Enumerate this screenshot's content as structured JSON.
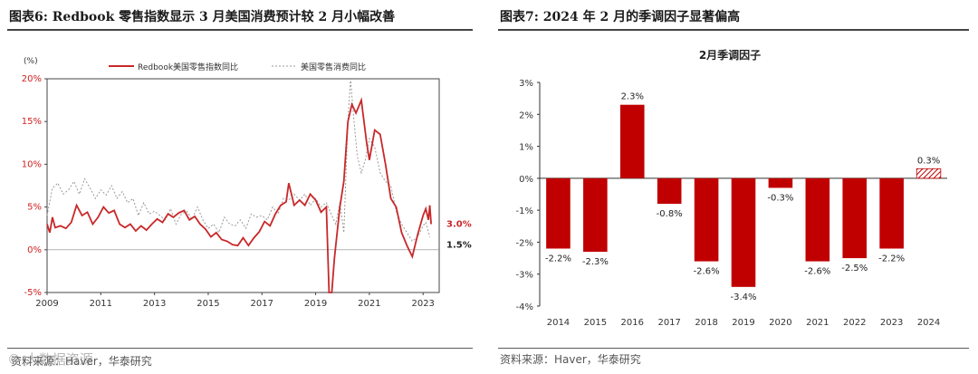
{
  "left": {
    "title": "图表6:   Redbook 零售指数显示 3 月美国消费预计较 2 月小幅改善",
    "source": "资料来源：Haver，华泰研究",
    "watermark": "© 大数据资源",
    "colors": {
      "redbook": "#c8282a",
      "retail": "#999999"
    }
  },
  "right": {
    "title": "图表7:   2024 年 2 月的季调因子显著偏高",
    "source": "资料来源：Haver，华泰研究",
    "colors": {
      "bar": "#c00000",
      "hatch": "#c00000"
    }
  },
  "chart_data": [
    {
      "type": "line",
      "unit_label": "(%)",
      "x_ticks": [
        "2009",
        "2011",
        "2013",
        "2015",
        "2017",
        "2019",
        "2021",
        "2023"
      ],
      "ylim": [
        -5,
        20
      ],
      "y_ticks": [
        "20%",
        "15%",
        "10%",
        "5%",
        "0%",
        "-5%"
      ],
      "y_tick_values": [
        20,
        15,
        10,
        5,
        0,
        -5
      ],
      "xlim": [
        2009,
        2023.6
      ],
      "series": [
        {
          "name": "Redbook美国零售指数同比",
          "end_label": "3.0%",
          "x": [
            2009.0,
            2009.1,
            2009.2,
            2009.3,
            2009.5,
            2009.7,
            2009.9,
            2010.1,
            2010.3,
            2010.5,
            2010.7,
            2010.9,
            2011.1,
            2011.3,
            2011.5,
            2011.7,
            2011.9,
            2012.1,
            2012.3,
            2012.5,
            2012.7,
            2012.9,
            2013.1,
            2013.3,
            2013.5,
            2013.7,
            2013.9,
            2014.1,
            2014.3,
            2014.5,
            2014.7,
            2014.9,
            2015.1,
            2015.3,
            2015.5,
            2015.7,
            2015.9,
            2016.1,
            2016.3,
            2016.5,
            2016.7,
            2016.9,
            2017.1,
            2017.3,
            2017.5,
            2017.7,
            2017.9,
            2018.0,
            2018.2,
            2018.4,
            2018.6,
            2018.8,
            2019.0,
            2019.2,
            2019.4,
            2019.5,
            2019.6,
            2019.7,
            2019.9,
            2020.05,
            2020.2,
            2020.35,
            2020.5,
            2020.7,
            2020.9,
            2021.0,
            2021.2,
            2021.4,
            2021.6,
            2021.8,
            2022.0,
            2022.2,
            2022.4,
            2022.6,
            2022.8,
            2023.0,
            2023.1,
            2023.2,
            2023.25,
            2023.3
          ],
          "values": [
            3.0,
            2.0,
            3.8,
            2.6,
            2.8,
            2.5,
            3.2,
            5.2,
            4.0,
            4.4,
            3.0,
            3.8,
            5.0,
            4.3,
            4.6,
            3.0,
            2.6,
            3.0,
            2.2,
            2.8,
            2.3,
            3.0,
            3.6,
            3.2,
            4.2,
            3.8,
            4.3,
            4.6,
            3.5,
            3.9,
            3.0,
            2.4,
            1.5,
            2.0,
            1.2,
            1.0,
            0.6,
            0.5,
            1.4,
            0.5,
            1.4,
            2.1,
            3.3,
            2.8,
            4.2,
            5.2,
            5.6,
            7.8,
            5.2,
            5.8,
            5.2,
            6.5,
            5.8,
            4.4,
            5.0,
            -5.2,
            -5.5,
            -1.0,
            5.0,
            8.0,
            15.0,
            17.0,
            16.0,
            17.5,
            12.5,
            10.5,
            14.0,
            13.5,
            10.0,
            6.0,
            5.0,
            2.0,
            0.5,
            -0.8,
            1.8,
            4.0,
            4.8,
            3.5,
            5.2,
            3.0
          ]
        },
        {
          "name": "美国零售消费同比",
          "end_label": "1.5%",
          "x": [
            2009.0,
            2009.2,
            2009.4,
            2009.6,
            2009.8,
            2010.0,
            2010.2,
            2010.4,
            2010.6,
            2010.8,
            2011.0,
            2011.2,
            2011.4,
            2011.6,
            2011.8,
            2012.0,
            2012.2,
            2012.4,
            2012.6,
            2012.8,
            2013.0,
            2013.2,
            2013.4,
            2013.6,
            2013.8,
            2014.0,
            2014.2,
            2014.4,
            2014.6,
            2014.8,
            2015.0,
            2015.2,
            2015.4,
            2015.6,
            2015.8,
            2016.0,
            2016.2,
            2016.4,
            2016.6,
            2016.8,
            2017.0,
            2017.2,
            2017.4,
            2017.6,
            2017.8,
            2018.0,
            2018.2,
            2018.4,
            2018.6,
            2018.8,
            2019.0,
            2019.2,
            2019.4,
            2019.6,
            2019.75,
            2019.9,
            2020.05,
            2020.2,
            2020.3,
            2020.4,
            2020.55,
            2020.7,
            2020.85,
            2021.0,
            2021.2,
            2021.4,
            2021.6,
            2021.8,
            2022.0,
            2022.2,
            2022.4,
            2022.6,
            2022.8,
            2023.0,
            2023.1,
            2023.25
          ],
          "values": [
            4.0,
            7.2,
            7.8,
            6.5,
            7.0,
            8.0,
            6.5,
            8.3,
            7.2,
            6.0,
            7.0,
            6.4,
            7.5,
            6.0,
            6.8,
            5.5,
            6.0,
            4.0,
            5.5,
            4.2,
            4.5,
            4.0,
            3.5,
            4.8,
            3.0,
            4.2,
            4.5,
            3.6,
            5.0,
            3.5,
            2.5,
            3.0,
            2.0,
            3.8,
            3.0,
            2.8,
            3.5,
            2.5,
            4.2,
            3.8,
            4.0,
            3.5,
            5.0,
            4.2,
            6.0,
            5.8,
            6.5,
            5.8,
            6.5,
            5.2,
            6.0,
            5.0,
            5.5,
            4.0,
            3.0,
            5.5,
            2.0,
            15.0,
            20.0,
            16.0,
            11.0,
            9.0,
            10.5,
            13.0,
            12.0,
            9.0,
            8.0,
            7.5,
            4.5,
            3.0,
            2.0,
            1.0,
            1.5,
            2.8,
            3.2,
            1.5
          ]
        }
      ]
    },
    {
      "type": "bar",
      "title": "2月季调因子",
      "categories": [
        "2014",
        "2015",
        "2016",
        "2017",
        "2018",
        "2019",
        "2020",
        "2021",
        "2022",
        "2023",
        "2024"
      ],
      "values": [
        -2.2,
        -2.3,
        2.3,
        -0.8,
        -2.6,
        -3.4,
        -0.3,
        -2.6,
        -2.5,
        -2.2,
        0.3
      ],
      "value_labels": [
        "-2.2%",
        "-2.3%",
        "2.3%",
        "-0.8%",
        "-2.6%",
        "-3.4%",
        "-0.3%",
        "-2.6%",
        "-2.5%",
        "-2.2%",
        "0.3%"
      ],
      "highlight_last": true,
      "ylim": [
        -4,
        3
      ],
      "y_ticks": [
        "3%",
        "2%",
        "1%",
        "0%",
        "-1%",
        "-2%",
        "-3%",
        "-4%"
      ],
      "y_tick_values": [
        3,
        2,
        1,
        0,
        -1,
        -2,
        -3,
        -4
      ]
    }
  ]
}
